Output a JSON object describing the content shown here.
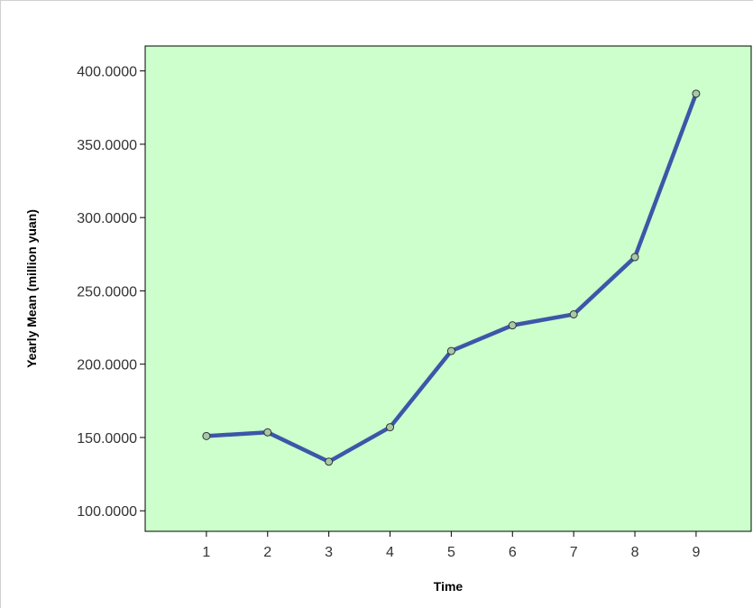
{
  "chart_data": {
    "type": "line",
    "title": "",
    "xlabel": "Time",
    "ylabel": "Yearly Mean (million yuan)",
    "x": [
      1,
      2,
      3,
      4,
      5,
      6,
      7,
      8,
      9
    ],
    "x_tick_labels": [
      "1",
      "2",
      "3",
      "4",
      "5",
      "6",
      "7",
      "8",
      "9"
    ],
    "series": [
      {
        "values": [
          151,
          153.5,
          133.5,
          157,
          209,
          226.5,
          234,
          273,
          384.5
        ]
      }
    ],
    "xlim": [
      0,
      9.9
    ],
    "ylim": [
      86,
      417
    ],
    "y_ticks": [
      100,
      150,
      200,
      250,
      300,
      350,
      400
    ],
    "y_tick_labels": [
      "100.0000",
      "150.0000",
      "200.0000",
      "250.0000",
      "300.0000",
      "350.0000",
      "400.0000"
    ],
    "grid": false,
    "legend": "none",
    "colors": {
      "plot_background": "#ccffcc",
      "line": "#3d56a8",
      "marker_fill": "#a8c8a8",
      "marker_stroke": "#333333",
      "axis": "#000000"
    }
  }
}
